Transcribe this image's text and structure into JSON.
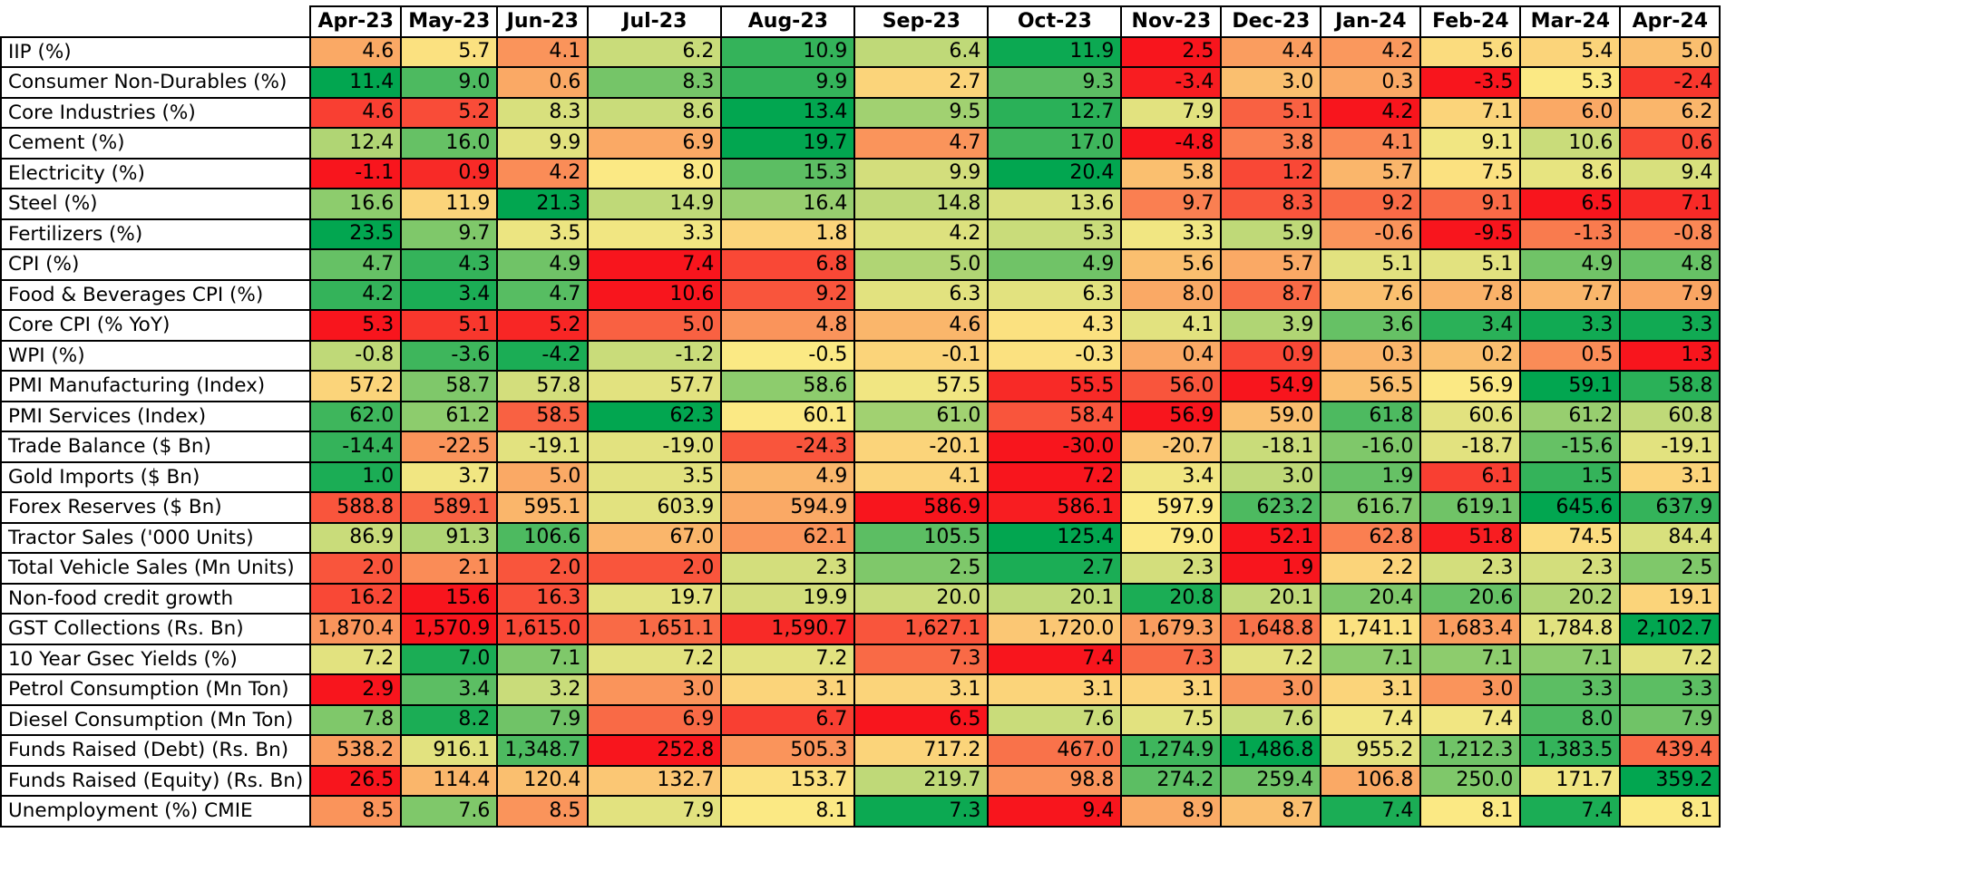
{
  "chart_data": {
    "type": "heatmap",
    "color_scale": {
      "low": "#f8151d",
      "mid": "#fbe984",
      "high": "#02a650"
    },
    "columns": [
      "Apr-23",
      "May-23",
      "Jun-23",
      "Jul-23",
      "Aug-23",
      "Sep-23",
      "Oct-23",
      "Nov-23",
      "Dec-23",
      "Jan-24",
      "Feb-24",
      "Mar-24",
      "Apr-24"
    ],
    "rows": [
      {
        "label": "IIP (%)",
        "values": [
          "4.6",
          "5.7",
          "4.1",
          "6.2",
          "10.9",
          "6.4",
          "11.9",
          "2.5",
          "4.4",
          "4.2",
          "5.6",
          "5.4",
          "5.0"
        ]
      },
      {
        "label": "Consumer Non-Durables (%)",
        "values": [
          "11.4",
          "9.0",
          "0.6",
          "8.3",
          "9.9",
          "2.7",
          "9.3",
          "-3.4",
          "3.0",
          "0.3",
          "-3.5",
          "5.3",
          "-2.4"
        ]
      },
      {
        "label": "Core Industries (%)",
        "values": [
          "4.6",
          "5.2",
          "8.3",
          "8.6",
          "13.4",
          "9.5",
          "12.7",
          "7.9",
          "5.1",
          "4.2",
          "7.1",
          "6.0",
          "6.2"
        ]
      },
      {
        "label": "Cement (%)",
        "values": [
          "12.4",
          "16.0",
          "9.9",
          "6.9",
          "19.7",
          "4.7",
          "17.0",
          "-4.8",
          "3.8",
          "4.1",
          "9.1",
          "10.6",
          "0.6"
        ]
      },
      {
        "label": "Electricity (%)",
        "values": [
          "-1.1",
          "0.9",
          "4.2",
          "8.0",
          "15.3",
          "9.9",
          "20.4",
          "5.8",
          "1.2",
          "5.7",
          "7.5",
          "8.6",
          "9.4"
        ]
      },
      {
        "label": "Steel (%)",
        "values": [
          "16.6",
          "11.9",
          "21.3",
          "14.9",
          "16.4",
          "14.8",
          "13.6",
          "9.7",
          "8.3",
          "9.2",
          "9.1",
          "6.5",
          "7.1"
        ]
      },
      {
        "label": "Fertilizers (%)",
        "values": [
          "23.5",
          "9.7",
          "3.5",
          "3.3",
          "1.8",
          "4.2",
          "5.3",
          "3.3",
          "5.9",
          "-0.6",
          "-9.5",
          "-1.3",
          "-0.8"
        ]
      },
      {
        "label": "CPI (%)",
        "values": [
          "4.7",
          "4.3",
          "4.9",
          "7.4",
          "6.8",
          "5.0",
          "4.9",
          "5.6",
          "5.7",
          "5.1",
          "5.1",
          "4.9",
          "4.8"
        ]
      },
      {
        "label": "Food & Beverages CPI (%)",
        "values": [
          "4.2",
          "3.4",
          "4.7",
          "10.6",
          "9.2",
          "6.3",
          "6.3",
          "8.0",
          "8.7",
          "7.6",
          "7.8",
          "7.7",
          "7.9"
        ]
      },
      {
        "label": "Core CPI (% YoY)",
        "values": [
          "5.3",
          "5.1",
          "5.2",
          "5.0",
          "4.8",
          "4.6",
          "4.3",
          "4.1",
          "3.9",
          "3.6",
          "3.4",
          "3.3",
          "3.3"
        ]
      },
      {
        "label": "WPI (%)",
        "values": [
          "-0.8",
          "-3.6",
          "-4.2",
          "-1.2",
          "-0.5",
          "-0.1",
          "-0.3",
          "0.4",
          "0.9",
          "0.3",
          "0.2",
          "0.5",
          "1.3"
        ]
      },
      {
        "label": "PMI Manufacturing (Index)",
        "values": [
          "57.2",
          "58.7",
          "57.8",
          "57.7",
          "58.6",
          "57.5",
          "55.5",
          "56.0",
          "54.9",
          "56.5",
          "56.9",
          "59.1",
          "58.8"
        ]
      },
      {
        "label": "PMI Services (Index)",
        "values": [
          "62.0",
          "61.2",
          "58.5",
          "62.3",
          "60.1",
          "61.0",
          "58.4",
          "56.9",
          "59.0",
          "61.8",
          "60.6",
          "61.2",
          "60.8"
        ]
      },
      {
        "label": "Trade Balance ($ Bn)",
        "values": [
          "-14.4",
          "-22.5",
          "-19.1",
          "-19.0",
          "-24.3",
          "-20.1",
          "-30.0",
          "-20.7",
          "-18.1",
          "-16.0",
          "-18.7",
          "-15.6",
          "-19.1"
        ]
      },
      {
        "label": "Gold Imports ($ Bn)",
        "values": [
          "1.0",
          "3.7",
          "5.0",
          "3.5",
          "4.9",
          "4.1",
          "7.2",
          "3.4",
          "3.0",
          "1.9",
          "6.1",
          "1.5",
          "3.1"
        ]
      },
      {
        "label": "Forex Reserves ($ Bn)",
        "values": [
          "588.8",
          "589.1",
          "595.1",
          "603.9",
          "594.9",
          "586.9",
          "586.1",
          "597.9",
          "623.2",
          "616.7",
          "619.1",
          "645.6",
          "637.9"
        ]
      },
      {
        "label": "Tractor Sales ('000 Units)",
        "values": [
          "86.9",
          "91.3",
          "106.6",
          "67.0",
          "62.1",
          "105.5",
          "125.4",
          "79.0",
          "52.1",
          "62.8",
          "51.8",
          "74.5",
          "84.4"
        ]
      },
      {
        "label": "Total Vehicle Sales (Mn Units)",
        "values": [
          "2.0",
          "2.1",
          "2.0",
          "2.0",
          "2.3",
          "2.5",
          "2.7",
          "2.3",
          "1.9",
          "2.2",
          "2.3",
          "2.3",
          "2.5"
        ]
      },
      {
        "label": "Non-food credit growth",
        "values": [
          "16.2",
          "15.6",
          "16.3",
          "19.7",
          "19.9",
          "20.0",
          "20.1",
          "20.8",
          "20.1",
          "20.4",
          "20.6",
          "20.2",
          "19.1"
        ]
      },
      {
        "label": "GST Collections (Rs. Bn)",
        "values": [
          "1,870.4",
          "1,570.9",
          "1,615.0",
          "1,651.1",
          "1,590.7",
          "1,627.1",
          "1,720.0",
          "1,679.3",
          "1,648.8",
          "1,741.1",
          "1,683.4",
          "1,784.8",
          "2,102.7"
        ]
      },
      {
        "label": "10 Year Gsec Yields (%)",
        "values": [
          "7.2",
          "7.0",
          "7.1",
          "7.2",
          "7.2",
          "7.3",
          "7.4",
          "7.3",
          "7.2",
          "7.1",
          "7.1",
          "7.1",
          "7.2"
        ]
      },
      {
        "label": "Petrol Consumption (Mn Ton)",
        "values": [
          "2.9",
          "3.4",
          "3.2",
          "3.0",
          "3.1",
          "3.1",
          "3.1",
          "3.1",
          "3.0",
          "3.1",
          "3.0",
          "3.3",
          "3.3"
        ]
      },
      {
        "label": "Diesel Consumption (Mn Ton)",
        "values": [
          "7.8",
          "8.2",
          "7.9",
          "6.9",
          "6.7",
          "6.5",
          "7.6",
          "7.5",
          "7.6",
          "7.4",
          "7.4",
          "8.0",
          "7.9"
        ]
      },
      {
        "label": "Funds Raised (Debt) (Rs. Bn)",
        "values": [
          "538.2",
          "916.1",
          "1,348.7",
          "252.8",
          "505.3",
          "717.2",
          "467.0",
          "1,274.9",
          "1,486.8",
          "955.2",
          "1,212.3",
          "1,383.5",
          "439.4"
        ]
      },
      {
        "label": "Funds Raised (Equity) (Rs. Bn)",
        "values": [
          "26.5",
          "114.4",
          "120.4",
          "132.7",
          "153.7",
          "219.7",
          "98.8",
          "274.2",
          "259.4",
          "106.8",
          "250.0",
          "171.7",
          "359.2"
        ]
      },
      {
        "label": "Unemployment (%) CMIE",
        "values": [
          "8.5",
          "7.6",
          "8.5",
          "7.9",
          "8.1",
          "7.3",
          "9.4",
          "8.9",
          "8.7",
          "7.4",
          "8.1",
          "7.4",
          "8.1"
        ]
      }
    ],
    "cell_levels": [
      [
        0.35,
        0.48,
        0.3,
        0.6,
        0.9,
        0.62,
        0.98,
        0.0,
        0.32,
        0.31,
        0.47,
        0.45,
        0.4
      ],
      [
        1.0,
        0.85,
        0.35,
        0.77,
        0.9,
        0.45,
        0.82,
        0.02,
        0.4,
        0.35,
        0.0,
        0.5,
        0.08
      ],
      [
        0.1,
        0.13,
        0.57,
        0.6,
        1.0,
        0.68,
        0.92,
        0.55,
        0.18,
        0.0,
        0.45,
        0.35,
        0.38
      ],
      [
        0.65,
        0.8,
        0.55,
        0.35,
        1.0,
        0.3,
        0.88,
        0.0,
        0.25,
        0.27,
        0.52,
        0.6,
        0.12
      ],
      [
        0.0,
        0.05,
        0.28,
        0.5,
        0.82,
        0.58,
        1.0,
        0.4,
        0.12,
        0.38,
        0.48,
        0.54,
        0.57
      ],
      [
        0.72,
        0.45,
        1.0,
        0.62,
        0.7,
        0.62,
        0.57,
        0.25,
        0.15,
        0.2,
        0.2,
        0.0,
        0.05
      ],
      [
        1.0,
        0.75,
        0.53,
        0.52,
        0.45,
        0.56,
        0.6,
        0.52,
        0.62,
        0.3,
        0.0,
        0.24,
        0.27
      ],
      [
        0.8,
        0.9,
        0.78,
        0.0,
        0.12,
        0.65,
        0.78,
        0.4,
        0.35,
        0.55,
        0.55,
        0.78,
        0.8
      ],
      [
        0.9,
        0.95,
        0.83,
        0.0,
        0.15,
        0.55,
        0.55,
        0.35,
        0.2,
        0.4,
        0.37,
        0.38,
        0.34
      ],
      [
        0.0,
        0.08,
        0.04,
        0.18,
        0.3,
        0.38,
        0.48,
        0.55,
        0.65,
        0.8,
        0.92,
        0.97,
        0.97
      ],
      [
        0.62,
        0.88,
        0.95,
        0.6,
        0.5,
        0.45,
        0.48,
        0.35,
        0.12,
        0.38,
        0.4,
        0.28,
        0.0
      ],
      [
        0.45,
        0.75,
        0.58,
        0.55,
        0.72,
        0.52,
        0.05,
        0.15,
        0.0,
        0.4,
        0.5,
        1.0,
        0.92
      ],
      [
        0.88,
        0.72,
        0.18,
        1.0,
        0.5,
        0.68,
        0.15,
        0.0,
        0.4,
        0.85,
        0.55,
        0.7,
        0.62
      ],
      [
        0.9,
        0.3,
        0.55,
        0.55,
        0.15,
        0.45,
        0.0,
        0.42,
        0.6,
        0.75,
        0.55,
        0.8,
        0.55
      ],
      [
        0.95,
        0.52,
        0.35,
        0.55,
        0.38,
        0.45,
        0.0,
        0.52,
        0.62,
        0.8,
        0.1,
        0.9,
        0.45
      ],
      [
        0.15,
        0.18,
        0.38,
        0.55,
        0.35,
        0.0,
        0.02,
        0.5,
        0.85,
        0.75,
        0.78,
        1.0,
        0.9
      ],
      [
        0.6,
        0.65,
        0.85,
        0.38,
        0.3,
        0.82,
        1.0,
        0.5,
        0.0,
        0.25,
        0.02,
        0.47,
        0.57
      ],
      [
        0.15,
        0.28,
        0.15,
        0.15,
        0.58,
        0.75,
        0.95,
        0.58,
        0.0,
        0.45,
        0.58,
        0.58,
        0.75
      ],
      [
        0.12,
        0.0,
        0.14,
        0.55,
        0.58,
        0.6,
        0.62,
        0.95,
        0.62,
        0.75,
        0.8,
        0.65,
        0.45
      ],
      [
        0.3,
        0.0,
        0.12,
        0.2,
        0.05,
        0.15,
        0.42,
        0.32,
        0.22,
        0.48,
        0.32,
        0.55,
        1.0
      ],
      [
        0.55,
        0.95,
        0.75,
        0.55,
        0.55,
        0.2,
        0.0,
        0.2,
        0.55,
        0.72,
        0.72,
        0.72,
        0.55
      ],
      [
        0.0,
        0.82,
        0.6,
        0.3,
        0.45,
        0.45,
        0.45,
        0.45,
        0.3,
        0.45,
        0.3,
        0.82,
        0.82
      ],
      [
        0.75,
        0.95,
        0.78,
        0.2,
        0.1,
        0.0,
        0.6,
        0.55,
        0.6,
        0.52,
        0.52,
        0.85,
        0.78
      ],
      [
        0.32,
        0.55,
        0.85,
        0.0,
        0.3,
        0.45,
        0.22,
        0.88,
        1.0,
        0.55,
        0.78,
        0.9,
        0.2
      ],
      [
        0.0,
        0.38,
        0.4,
        0.42,
        0.48,
        0.62,
        0.3,
        0.82,
        0.78,
        0.35,
        0.75,
        0.52,
        1.0
      ],
      [
        0.3,
        0.75,
        0.3,
        0.55,
        0.5,
        0.98,
        0.0,
        0.35,
        0.4,
        0.95,
        0.5,
        0.95,
        0.5
      ]
    ]
  }
}
